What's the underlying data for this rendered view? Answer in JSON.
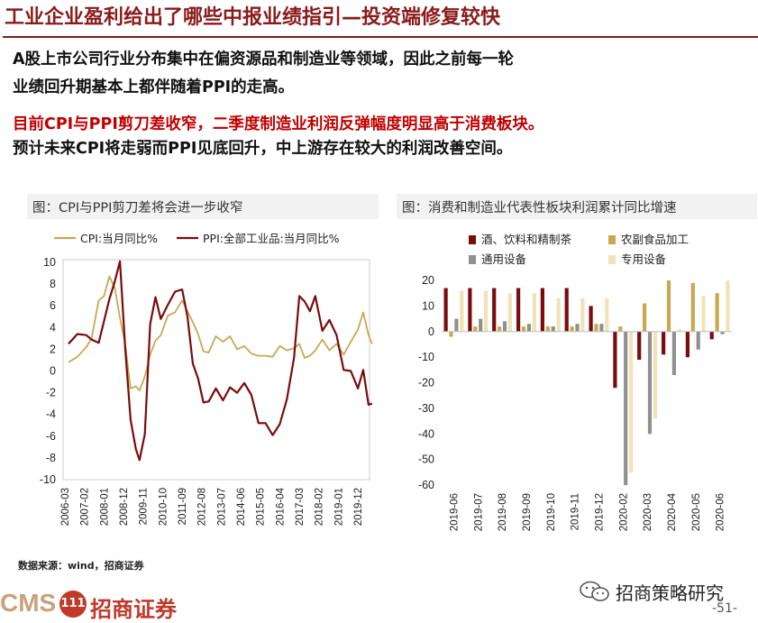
{
  "header": {
    "title": "工业企业盈利给出了哪些中报业绩指引—投资端修复较快"
  },
  "body_text": {
    "line1": "A股上市公司行业分布集中在偏资源品和制造业等领域，因此之前每一轮",
    "line2": "业绩回升期基本上都伴随着PPI的走高。",
    "line3": "目前CPI与PPI剪刀差收窄，二季度制造业利润反弹幅度明显高于消费板块。",
    "line4": "预计未来CPI将走弱而PPI见底回升，中上游存在较大的利润改善空间。"
  },
  "footer": {
    "source": "数据来源：wind，招商证券",
    "logo_text": "CMS",
    "logo_badge": "111",
    "logo_cn": "招商证券",
    "wechat": "招商策略研究",
    "page": "-51-"
  },
  "colors": {
    "title": "#8b1a1a",
    "red_text": "#c00000",
    "cpi": "#c8a951",
    "ppi": "#7a0c0c",
    "alcohol": "#7a0c0c",
    "agri": "#c8a951",
    "general_equip": "#909090",
    "special_equip": "#f2e2b8"
  },
  "chart_data": [
    {
      "type": "line",
      "title": "图：CPI与PPI剪刀差将会进一步收窄",
      "x_ticks": [
        "2006-03",
        "2007-02",
        "2008-01",
        "2008-12",
        "2009-11",
        "2010-10",
        "2011-09",
        "2012-08",
        "2013-07",
        "2014-06",
        "2015-05",
        "2016-04",
        "2017-03",
        "2018-02",
        "2019-01",
        "2019-12"
      ],
      "ylim": [
        -10,
        10
      ],
      "y_ticks": [
        -10,
        -8,
        -6,
        -4,
        -2,
        0,
        2,
        4,
        6,
        8,
        10
      ],
      "legend_position": "top",
      "series": [
        {
          "name": "CPI:当月同比%",
          "color": "#c8a951",
          "x": [
            "2006-03",
            "2006-08",
            "2007-01",
            "2007-04",
            "2007-08",
            "2007-11",
            "2008-02",
            "2008-05",
            "2008-08",
            "2008-11",
            "2009-02",
            "2009-05",
            "2009-07",
            "2009-10",
            "2010-01",
            "2010-04",
            "2010-07",
            "2010-11",
            "2011-03",
            "2011-07",
            "2011-10",
            "2012-01",
            "2012-04",
            "2012-07",
            "2012-10",
            "2013-02",
            "2013-06",
            "2013-10",
            "2014-02",
            "2014-06",
            "2014-10",
            "2015-02",
            "2015-06",
            "2015-10",
            "2016-02",
            "2016-06",
            "2016-10",
            "2017-01",
            "2017-04",
            "2017-07",
            "2017-10",
            "2018-02",
            "2018-06",
            "2018-10",
            "2019-02",
            "2019-06",
            "2019-10",
            "2020-01",
            "2020-04",
            "2020-06"
          ],
          "values": [
            0.8,
            1.3,
            2.2,
            3.0,
            6.5,
            6.9,
            8.7,
            7.7,
            4.9,
            2.4,
            -1.6,
            -1.4,
            -1.8,
            -0.5,
            1.5,
            2.8,
            3.3,
            5.1,
            5.4,
            6.5,
            5.5,
            4.5,
            3.4,
            1.8,
            1.7,
            3.2,
            2.7,
            3.2,
            2.0,
            2.3,
            1.6,
            1.4,
            1.4,
            1.3,
            2.3,
            1.9,
            2.1,
            2.5,
            1.2,
            1.4,
            1.9,
            2.9,
            1.9,
            2.5,
            1.5,
            2.7,
            3.8,
            5.4,
            3.3,
            2.5
          ]
        },
        {
          "name": "PPI:全部工业品:当月同比%",
          "color": "#7a0c0c",
          "x": [
            "2006-03",
            "2006-08",
            "2007-01",
            "2007-04",
            "2007-08",
            "2007-11",
            "2008-02",
            "2008-05",
            "2008-08",
            "2008-11",
            "2009-02",
            "2009-05",
            "2009-07",
            "2009-10",
            "2010-01",
            "2010-04",
            "2010-07",
            "2010-11",
            "2011-03",
            "2011-07",
            "2011-10",
            "2012-01",
            "2012-04",
            "2012-07",
            "2012-10",
            "2013-02",
            "2013-06",
            "2013-10",
            "2014-02",
            "2014-06",
            "2014-10",
            "2015-02",
            "2015-06",
            "2015-10",
            "2016-02",
            "2016-06",
            "2016-10",
            "2017-01",
            "2017-04",
            "2017-07",
            "2017-10",
            "2018-02",
            "2018-06",
            "2018-10",
            "2019-02",
            "2019-06",
            "2019-10",
            "2020-01",
            "2020-04",
            "2020-06"
          ],
          "values": [
            2.5,
            3.4,
            3.3,
            2.9,
            2.6,
            4.6,
            6.6,
            8.2,
            10.1,
            2.0,
            -4.5,
            -7.2,
            -8.2,
            -5.8,
            4.3,
            6.8,
            4.8,
            6.1,
            7.3,
            7.5,
            5.0,
            0.7,
            -0.7,
            -2.9,
            -2.8,
            -1.6,
            -2.7,
            -1.5,
            -2.0,
            -1.1,
            -2.2,
            -4.8,
            -4.8,
            -5.9,
            -4.9,
            -2.6,
            1.2,
            6.9,
            6.4,
            5.5,
            6.9,
            3.7,
            4.7,
            3.3,
            0.1,
            0.0,
            -1.6,
            0.1,
            -3.1,
            -3.0
          ]
        }
      ]
    },
    {
      "type": "bar",
      "title": "图：消费和制造业代表性板块利润累计同比增速",
      "categories": [
        "2019-06",
        "2019-07",
        "2019-08",
        "2019-09",
        "2019-10",
        "2019-11",
        "2019-12",
        "2020-02",
        "2020-03",
        "2020-04",
        "2020-05",
        "2020-06"
      ],
      "ylim": [
        -60,
        20
      ],
      "y_ticks": [
        -60,
        -50,
        -40,
        -30,
        -20,
        -10,
        0,
        10,
        20
      ],
      "legend_position": "top",
      "series": [
        {
          "name": "酒、饮料和精制茶",
          "color": "#7a0c0c",
          "values": [
            17,
            17,
            17,
            17,
            17,
            17,
            10,
            -22,
            -11,
            -9,
            -10,
            -3
          ]
        },
        {
          "name": "农副食品加工",
          "color": "#c8a951",
          "values": [
            -2,
            2,
            2,
            2,
            2,
            2,
            3,
            2,
            11,
            20,
            19,
            15
          ]
        },
        {
          "name": "通用设备",
          "color": "#909090",
          "values": [
            5,
            5,
            4,
            3,
            2,
            3,
            3,
            -60,
            -40,
            -17,
            -7,
            -1
          ]
        },
        {
          "name": "专用设备",
          "color": "#f2e2b8",
          "values": [
            16,
            16,
            15,
            15,
            13,
            13,
            13,
            -55,
            -34,
            1,
            14,
            20
          ]
        }
      ]
    }
  ]
}
